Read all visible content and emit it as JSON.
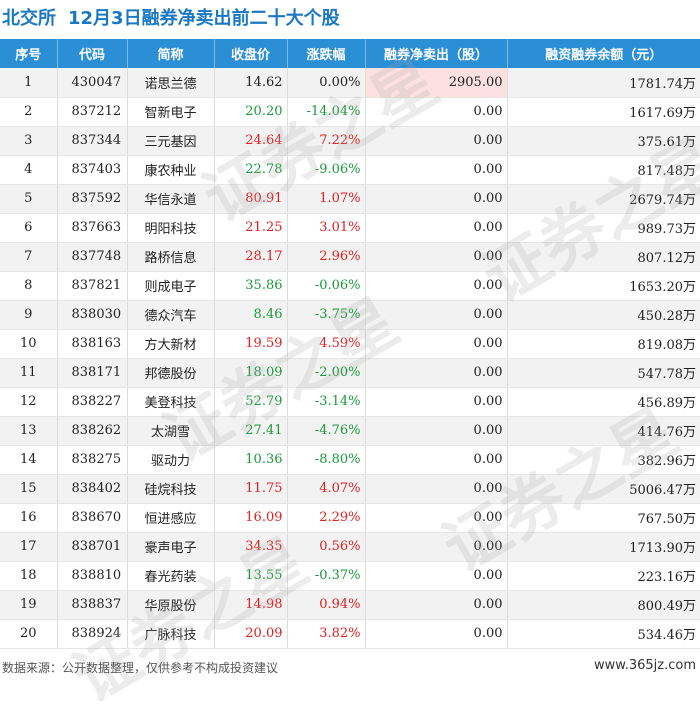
{
  "title": {
    "prefix": "北交所",
    "main": "12月3日融券净卖出前二十大个股"
  },
  "columns": [
    "序号",
    "代码",
    "简称",
    "收盘价",
    "涨跌幅",
    "融券净卖出（股）",
    "融资融券余额（元）"
  ],
  "rows": [
    {
      "idx": "1",
      "code": "430047",
      "name": "诺思兰德",
      "price": "14.62",
      "chg": "0.00%",
      "dir": "flat",
      "net": "2905.00",
      "bal": "1781.74万"
    },
    {
      "idx": "2",
      "code": "837212",
      "name": "智新电子",
      "price": "20.20",
      "chg": "-14.04%",
      "dir": "down",
      "net": "0.00",
      "bal": "1617.69万"
    },
    {
      "idx": "3",
      "code": "837344",
      "name": "三元基因",
      "price": "24.64",
      "chg": "7.22%",
      "dir": "up",
      "net": "0.00",
      "bal": "375.61万"
    },
    {
      "idx": "4",
      "code": "837403",
      "name": "康农种业",
      "price": "22.78",
      "chg": "-9.06%",
      "dir": "down",
      "net": "0.00",
      "bal": "817.48万"
    },
    {
      "idx": "5",
      "code": "837592",
      "name": "华信永道",
      "price": "80.91",
      "chg": "1.07%",
      "dir": "up",
      "net": "0.00",
      "bal": "2679.74万"
    },
    {
      "idx": "6",
      "code": "837663",
      "name": "明阳科技",
      "price": "21.25",
      "chg": "3.01%",
      "dir": "up",
      "net": "0.00",
      "bal": "989.73万"
    },
    {
      "idx": "7",
      "code": "837748",
      "name": "路桥信息",
      "price": "28.17",
      "chg": "2.96%",
      "dir": "up",
      "net": "0.00",
      "bal": "807.12万"
    },
    {
      "idx": "8",
      "code": "837821",
      "name": "则成电子",
      "price": "35.86",
      "chg": "-0.06%",
      "dir": "down",
      "net": "0.00",
      "bal": "1653.20万"
    },
    {
      "idx": "9",
      "code": "838030",
      "name": "德众汽车",
      "price": "8.46",
      "chg": "-3.75%",
      "dir": "down",
      "net": "0.00",
      "bal": "450.28万"
    },
    {
      "idx": "10",
      "code": "838163",
      "name": "方大新材",
      "price": "19.59",
      "chg": "4.59%",
      "dir": "up",
      "net": "0.00",
      "bal": "819.08万"
    },
    {
      "idx": "11",
      "code": "838171",
      "name": "邦德股份",
      "price": "18.09",
      "chg": "-2.00%",
      "dir": "down",
      "net": "0.00",
      "bal": "547.78万"
    },
    {
      "idx": "12",
      "code": "838227",
      "name": "美登科技",
      "price": "52.79",
      "chg": "-3.14%",
      "dir": "down",
      "net": "0.00",
      "bal": "456.89万"
    },
    {
      "idx": "13",
      "code": "838262",
      "name": "太湖雪",
      "price": "27.41",
      "chg": "-4.76%",
      "dir": "down",
      "net": "0.00",
      "bal": "414.76万"
    },
    {
      "idx": "14",
      "code": "838275",
      "name": "驱动力",
      "price": "10.36",
      "chg": "-8.80%",
      "dir": "down",
      "net": "0.00",
      "bal": "382.96万"
    },
    {
      "idx": "15",
      "code": "838402",
      "name": "硅烷科技",
      "price": "11.75",
      "chg": "4.07%",
      "dir": "up",
      "net": "0.00",
      "bal": "5006.47万"
    },
    {
      "idx": "16",
      "code": "838670",
      "name": "恒进感应",
      "price": "16.09",
      "chg": "2.29%",
      "dir": "up",
      "net": "0.00",
      "bal": "767.50万"
    },
    {
      "idx": "17",
      "code": "838701",
      "name": "豪声电子",
      "price": "34.35",
      "chg": "0.56%",
      "dir": "up",
      "net": "0.00",
      "bal": "1713.90万"
    },
    {
      "idx": "18",
      "code": "838810",
      "name": "春光药装",
      "price": "13.55",
      "chg": "-0.37%",
      "dir": "down",
      "net": "0.00",
      "bal": "223.16万"
    },
    {
      "idx": "19",
      "code": "838837",
      "name": "华原股份",
      "price": "14.98",
      "chg": "0.94%",
      "dir": "up",
      "net": "0.00",
      "bal": "800.49万"
    },
    {
      "idx": "20",
      "code": "838924",
      "name": "广脉科技",
      "price": "20.09",
      "chg": "3.82%",
      "dir": "up",
      "net": "0.00",
      "bal": "534.46万"
    }
  ],
  "highlight_row": 0,
  "footer": "数据来源：公开数据整理，仅供参考不构成投资建议",
  "site": "www.365jz.com",
  "watermark": "证券之星",
  "colors": {
    "header_bg": "#2b8fd6",
    "title": "#1a78c2",
    "up": "#e02020",
    "down": "#1a9a3a",
    "highlight": "#fde0e0"
  }
}
